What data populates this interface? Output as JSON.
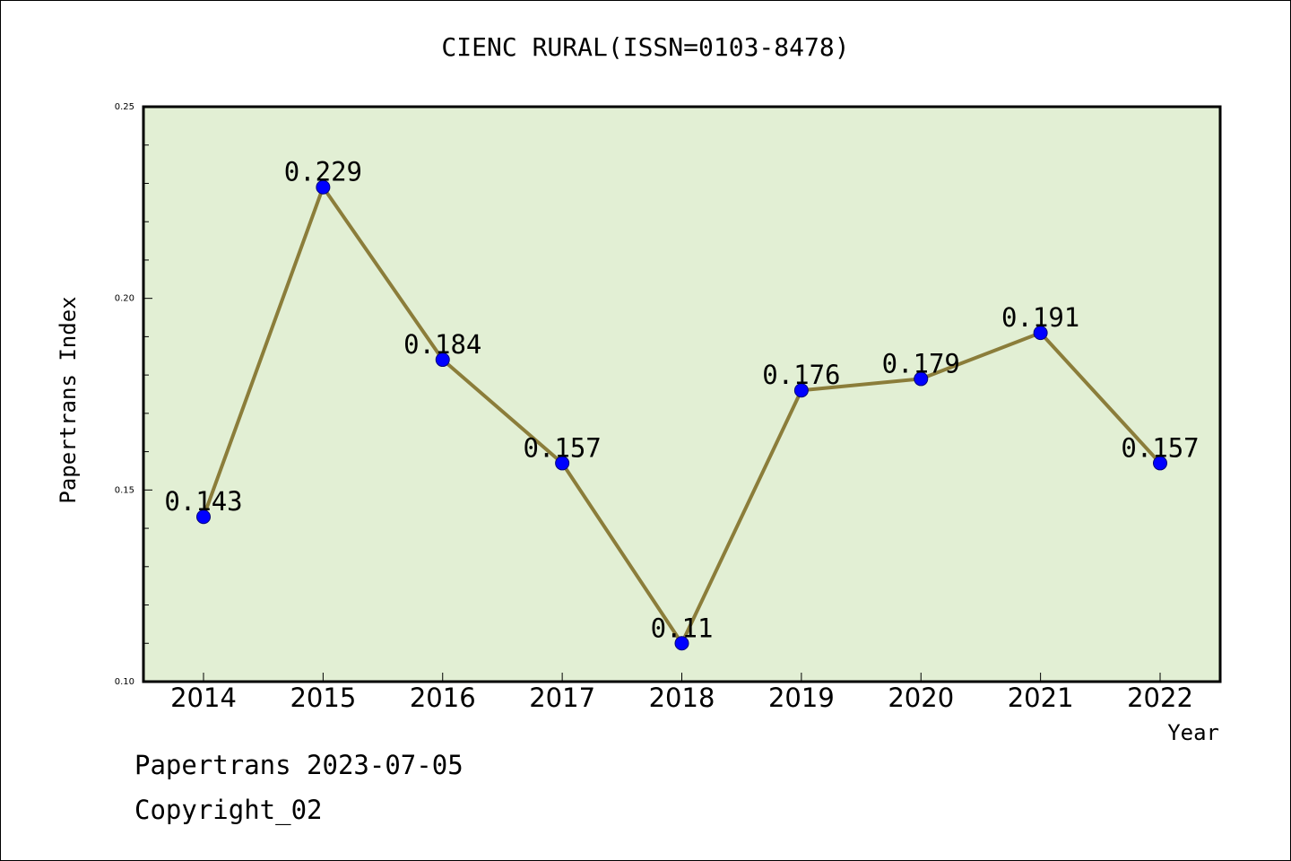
{
  "footer": {
    "line1": "Papertrans 2023-07-05",
    "line2": "Copyright_02"
  },
  "chart_data": {
    "type": "line",
    "title": "CIENC RURAL(ISSN=0103-8478)",
    "xlabel": "Year",
    "ylabel": "Papertrans Index",
    "x": [
      "2014",
      "2015",
      "2016",
      "2017",
      "2018",
      "2019",
      "2020",
      "2021",
      "2022"
    ],
    "series": [
      {
        "values": [
          0.143,
          0.229,
          0.184,
          0.157,
          0.11,
          0.176,
          0.179,
          0.191,
          0.157
        ],
        "data_labels": [
          "0.143",
          "0.229",
          "0.184",
          "0.157",
          "0.11",
          "0.176",
          "0.179",
          "0.191",
          "0.157"
        ],
        "line_color": "#8b7d3a",
        "marker_color": "#0000ff"
      }
    ],
    "ylim": [
      0.1,
      0.25
    ],
    "yticks": [
      "0.10",
      "0.15",
      "0.20",
      "0.25"
    ],
    "plot_background": "#e2efd4",
    "grid": false,
    "legend": "none"
  }
}
